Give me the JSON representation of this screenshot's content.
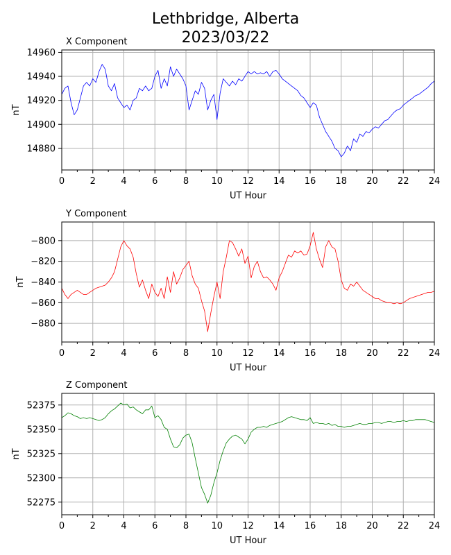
{
  "figure": {
    "title_line1": "Lethbridge, Alberta",
    "title_line2": "2023/03/22"
  },
  "chart_data": [
    {
      "type": "line",
      "title": "X Component",
      "xlabel": "UT Hour",
      "ylabel": "nT",
      "xlim": [
        0,
        24
      ],
      "ylim": [
        14862,
        14962
      ],
      "xticks": [
        0,
        2,
        4,
        6,
        8,
        10,
        12,
        14,
        16,
        18,
        20,
        22,
        24
      ],
      "yticks": [
        14880,
        14900,
        14920,
        14940,
        14960
      ],
      "grid": true,
      "series": [
        {
          "color": "#0000ff",
          "x": [
            0,
            0.2,
            0.4,
            0.6,
            0.8,
            1.0,
            1.2,
            1.4,
            1.6,
            1.8,
            2.0,
            2.2,
            2.4,
            2.6,
            2.8,
            3.0,
            3.2,
            3.4,
            3.6,
            3.8,
            4.0,
            4.2,
            4.4,
            4.6,
            4.8,
            5.0,
            5.2,
            5.4,
            5.6,
            5.8,
            6.0,
            6.2,
            6.4,
            6.6,
            6.8,
            7.0,
            7.2,
            7.4,
            7.6,
            7.8,
            8.0,
            8.2,
            8.4,
            8.6,
            8.8,
            9.0,
            9.2,
            9.4,
            9.6,
            9.8,
            10.0,
            10.2,
            10.4,
            10.6,
            10.8,
            11.0,
            11.2,
            11.4,
            11.6,
            11.8,
            12.0,
            12.2,
            12.4,
            12.6,
            12.8,
            13.0,
            13.2,
            13.4,
            13.6,
            13.8,
            14.0,
            14.2,
            14.4,
            14.6,
            14.8,
            15.0,
            15.2,
            15.4,
            15.6,
            15.8,
            16.0,
            16.2,
            16.4,
            16.6,
            16.8,
            17.0,
            17.2,
            17.4,
            17.6,
            17.8,
            18.0,
            18.2,
            18.4,
            18.6,
            18.8,
            19.0,
            19.2,
            19.4,
            19.6,
            19.8,
            20.0,
            20.2,
            20.4,
            20.6,
            20.8,
            21.0,
            21.2,
            21.4,
            21.6,
            21.8,
            22.0,
            22.2,
            22.4,
            22.6,
            22.8,
            23.0,
            23.2,
            23.4,
            23.6,
            23.8,
            24.0
          ],
          "values": [
            14925,
            14930,
            14932,
            14918,
            14908,
            14912,
            14922,
            14932,
            14935,
            14932,
            14938,
            14935,
            14944,
            14950,
            14946,
            14932,
            14928,
            14934,
            14922,
            14918,
            14914,
            14916,
            14912,
            14920,
            14922,
            14930,
            14928,
            14932,
            14928,
            14930,
            14940,
            14945,
            14930,
            14938,
            14932,
            14948,
            14940,
            14946,
            14942,
            14938,
            14932,
            14912,
            14920,
            14928,
            14925,
            14935,
            14930,
            14912,
            14920,
            14925,
            14904,
            14926,
            14938,
            14935,
            14932,
            14936,
            14933,
            14938,
            14936,
            14940,
            14944,
            14942,
            14944,
            14942,
            14943,
            14942,
            14944,
            14940,
            14944,
            14945,
            14942,
            14938,
            14936,
            14934,
            14932,
            14930,
            14928,
            14924,
            14922,
            14918,
            14914,
            14918,
            14916,
            14906,
            14900,
            14894,
            14890,
            14886,
            14880,
            14878,
            14873,
            14876,
            14882,
            14878,
            14888,
            14885,
            14892,
            14890,
            14894,
            14893,
            14896,
            14898,
            14897,
            14900,
            14903,
            14904,
            14907,
            14910,
            14912,
            14913,
            14916,
            14918,
            14920,
            14922,
            14924,
            14925,
            14927,
            14929,
            14931,
            14934,
            14936
          ]
        }
      ]
    },
    {
      "type": "line",
      "title": "Y Component",
      "xlabel": "UT Hour",
      "ylabel": "nT",
      "xlim": [
        0,
        24
      ],
      "ylim": [
        -898,
        -782
      ],
      "xticks": [
        0,
        2,
        4,
        6,
        8,
        10,
        12,
        14,
        16,
        18,
        20,
        22,
        24
      ],
      "yticks": [
        -880,
        -860,
        -840,
        -820,
        -800
      ],
      "grid": true,
      "series": [
        {
          "color": "#ff0000",
          "x": [
            0,
            0.2,
            0.4,
            0.6,
            0.8,
            1.0,
            1.2,
            1.4,
            1.6,
            1.8,
            2.0,
            2.2,
            2.4,
            2.6,
            2.8,
            3.0,
            3.2,
            3.4,
            3.6,
            3.8,
            4.0,
            4.2,
            4.4,
            4.6,
            4.8,
            5.0,
            5.2,
            5.4,
            5.6,
            5.8,
            6.0,
            6.2,
            6.4,
            6.6,
            6.8,
            7.0,
            7.2,
            7.4,
            7.6,
            7.8,
            8.0,
            8.2,
            8.4,
            8.6,
            8.8,
            9.0,
            9.2,
            9.4,
            9.6,
            9.8,
            10.0,
            10.2,
            10.4,
            10.6,
            10.8,
            11.0,
            11.2,
            11.4,
            11.6,
            11.8,
            12.0,
            12.2,
            12.4,
            12.6,
            12.8,
            13.0,
            13.2,
            13.4,
            13.6,
            13.8,
            14.0,
            14.2,
            14.4,
            14.6,
            14.8,
            15.0,
            15.2,
            15.4,
            15.6,
            15.8,
            16.0,
            16.2,
            16.4,
            16.6,
            16.8,
            17.0,
            17.2,
            17.4,
            17.6,
            17.8,
            18.0,
            18.2,
            18.4,
            18.6,
            18.8,
            19.0,
            19.2,
            19.4,
            19.6,
            19.8,
            20.0,
            20.2,
            20.4,
            20.6,
            20.8,
            21.0,
            21.2,
            21.4,
            21.6,
            21.8,
            22.0,
            22.2,
            22.4,
            22.6,
            22.8,
            23.0,
            23.2,
            23.4,
            23.6,
            23.8,
            24.0
          ],
          "values": [
            -846,
            -852,
            -856,
            -852,
            -850,
            -848,
            -850,
            -852,
            -852,
            -850,
            -848,
            -846,
            -845,
            -844,
            -843,
            -840,
            -836,
            -830,
            -818,
            -806,
            -800,
            -805,
            -808,
            -816,
            -832,
            -845,
            -838,
            -848,
            -856,
            -842,
            -850,
            -854,
            -846,
            -856,
            -835,
            -850,
            -830,
            -842,
            -836,
            -828,
            -824,
            -820,
            -834,
            -842,
            -846,
            -858,
            -868,
            -888,
            -870,
            -854,
            -840,
            -856,
            -830,
            -816,
            -800,
            -802,
            -808,
            -815,
            -808,
            -822,
            -815,
            -836,
            -825,
            -820,
            -830,
            -836,
            -835,
            -838,
            -842,
            -848,
            -836,
            -830,
            -822,
            -814,
            -816,
            -810,
            -812,
            -810,
            -814,
            -813,
            -805,
            -792,
            -808,
            -818,
            -826,
            -806,
            -800,
            -806,
            -808,
            -820,
            -838,
            -846,
            -848,
            -842,
            -844,
            -840,
            -844,
            -848,
            -850,
            -852,
            -854,
            -856,
            -856,
            -858,
            -859,
            -860,
            -860,
            -861,
            -860,
            -861,
            -860,
            -858,
            -856,
            -855,
            -854,
            -853,
            -852,
            -851,
            -850,
            -850,
            -849
          ]
        }
      ]
    },
    {
      "type": "line",
      "title": "Z Component",
      "xlabel": "UT Hour",
      "ylabel": "nT",
      "xlim": [
        0,
        24
      ],
      "ylim": [
        52262,
        52387
      ],
      "xticks": [
        0,
        2,
        4,
        6,
        8,
        10,
        12,
        14,
        16,
        18,
        20,
        22,
        24
      ],
      "yticks": [
        52275,
        52300,
        52325,
        52350,
        52375
      ],
      "grid": true,
      "series": [
        {
          "color": "#008000",
          "x": [
            0,
            0.2,
            0.4,
            0.6,
            0.8,
            1.0,
            1.2,
            1.4,
            1.6,
            1.8,
            2.0,
            2.2,
            2.4,
            2.6,
            2.8,
            3.0,
            3.2,
            3.4,
            3.6,
            3.8,
            4.0,
            4.2,
            4.4,
            4.6,
            4.8,
            5.0,
            5.2,
            5.4,
            5.6,
            5.8,
            6.0,
            6.2,
            6.4,
            6.6,
            6.8,
            7.0,
            7.2,
            7.4,
            7.6,
            7.8,
            8.0,
            8.2,
            8.4,
            8.6,
            8.8,
            9.0,
            9.2,
            9.4,
            9.6,
            9.8,
            10.0,
            10.2,
            10.4,
            10.6,
            10.8,
            11.0,
            11.2,
            11.4,
            11.6,
            11.8,
            12.0,
            12.2,
            12.4,
            12.6,
            12.8,
            13.0,
            13.2,
            13.4,
            13.6,
            13.8,
            14.0,
            14.2,
            14.4,
            14.6,
            14.8,
            15.0,
            15.2,
            15.4,
            15.6,
            15.8,
            16.0,
            16.2,
            16.4,
            16.6,
            16.8,
            17.0,
            17.2,
            17.4,
            17.6,
            17.8,
            18.0,
            18.2,
            18.4,
            18.6,
            18.8,
            19.0,
            19.2,
            19.4,
            19.6,
            19.8,
            20.0,
            20.2,
            20.4,
            20.6,
            20.8,
            21.0,
            21.2,
            21.4,
            21.6,
            21.8,
            22.0,
            22.2,
            22.4,
            22.6,
            22.8,
            23.0,
            23.2,
            23.4,
            23.6,
            23.8,
            24.0
          ],
          "values": [
            52362,
            52364,
            52367,
            52366,
            52364,
            52363,
            52361,
            52362,
            52361,
            52362,
            52361,
            52360,
            52359,
            52360,
            52362,
            52366,
            52369,
            52371,
            52374,
            52377,
            52375,
            52376,
            52372,
            52373,
            52370,
            52368,
            52366,
            52370,
            52370,
            52374,
            52362,
            52364,
            52360,
            52352,
            52350,
            52340,
            52332,
            52331,
            52334,
            52341,
            52344,
            52345,
            52336,
            52320,
            52305,
            52290,
            52283,
            52274,
            52282,
            52295,
            52305,
            52318,
            52328,
            52336,
            52340,
            52343,
            52344,
            52342,
            52340,
            52335,
            52340,
            52347,
            52350,
            52352,
            52352,
            52353,
            52352,
            52354,
            52355,
            52356,
            52357,
            52358,
            52360,
            52362,
            52363,
            52362,
            52361,
            52360,
            52360,
            52359,
            52362,
            52356,
            52357,
            52356,
            52356,
            52355,
            52356,
            52354,
            52355,
            52353,
            52353,
            52352,
            52353,
            52353,
            52354,
            52355,
            52356,
            52355,
            52355,
            52356,
            52356,
            52357,
            52357,
            52356,
            52357,
            52358,
            52358,
            52357,
            52358,
            52358,
            52359,
            52358,
            52359,
            52359,
            52360,
            52360,
            52360,
            52360,
            52359,
            52358,
            52357
          ]
        }
      ]
    }
  ]
}
